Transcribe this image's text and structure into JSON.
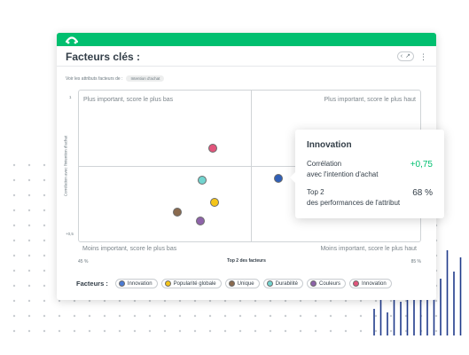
{
  "app": {
    "brand_color": "#00bf6f"
  },
  "header": {
    "title": "Facteurs clés :"
  },
  "subline": {
    "label": "Voir les attributs facteurs de :",
    "selected": "Intention d'achat"
  },
  "quadrants": {
    "top_left": "Plus important, score le plus bas",
    "top_right": "Plus important, score le plus haut",
    "bottom_left": "Moins important, score le plus bas",
    "bottom_right": "Moins important, score le plus haut"
  },
  "axes": {
    "ylabel": "Corrélation avec l'intention d'achat",
    "y_top": "1",
    "y_bottom": "+0,5",
    "xlabel": "Top 2 des facteurs",
    "x_left": "45 %",
    "x_right": "85 %"
  },
  "legend": {
    "title": "Facteurs :",
    "items": [
      {
        "label": "Innovation",
        "color": "#4b7bd4"
      },
      {
        "label": "Popularité globale",
        "color": "#f5c518"
      },
      {
        "label": "Unique",
        "color": "#8a6a4e"
      },
      {
        "label": "Durabilité",
        "color": "#72d4cf"
      },
      {
        "label": "Couleurs",
        "color": "#8e63a9"
      },
      {
        "label": "Innovation",
        "color": "#e2557c"
      }
    ]
  },
  "points": [
    {
      "factor": "Innovation (rose)",
      "color": "#e2557c"
    },
    {
      "factor": "Durabilité",
      "color": "#72d4cf"
    },
    {
      "factor": "Popularité globale",
      "color": "#f5c518"
    },
    {
      "factor": "Unique",
      "color": "#8a6a4e"
    },
    {
      "factor": "Couleurs",
      "color": "#8e63a9"
    },
    {
      "factor": "Innovation",
      "color": "#2f5fb7"
    }
  ],
  "tooltip": {
    "title": "Innovation",
    "corr_label": "Corrélation",
    "corr_sub": "avec l'intention d'achat",
    "corr_value": "+0,75",
    "corr_color": "#00bf6f",
    "top2_label": "Top 2",
    "top2_sub": "des performances de l'attribut",
    "top2_value": "68 %"
  }
}
